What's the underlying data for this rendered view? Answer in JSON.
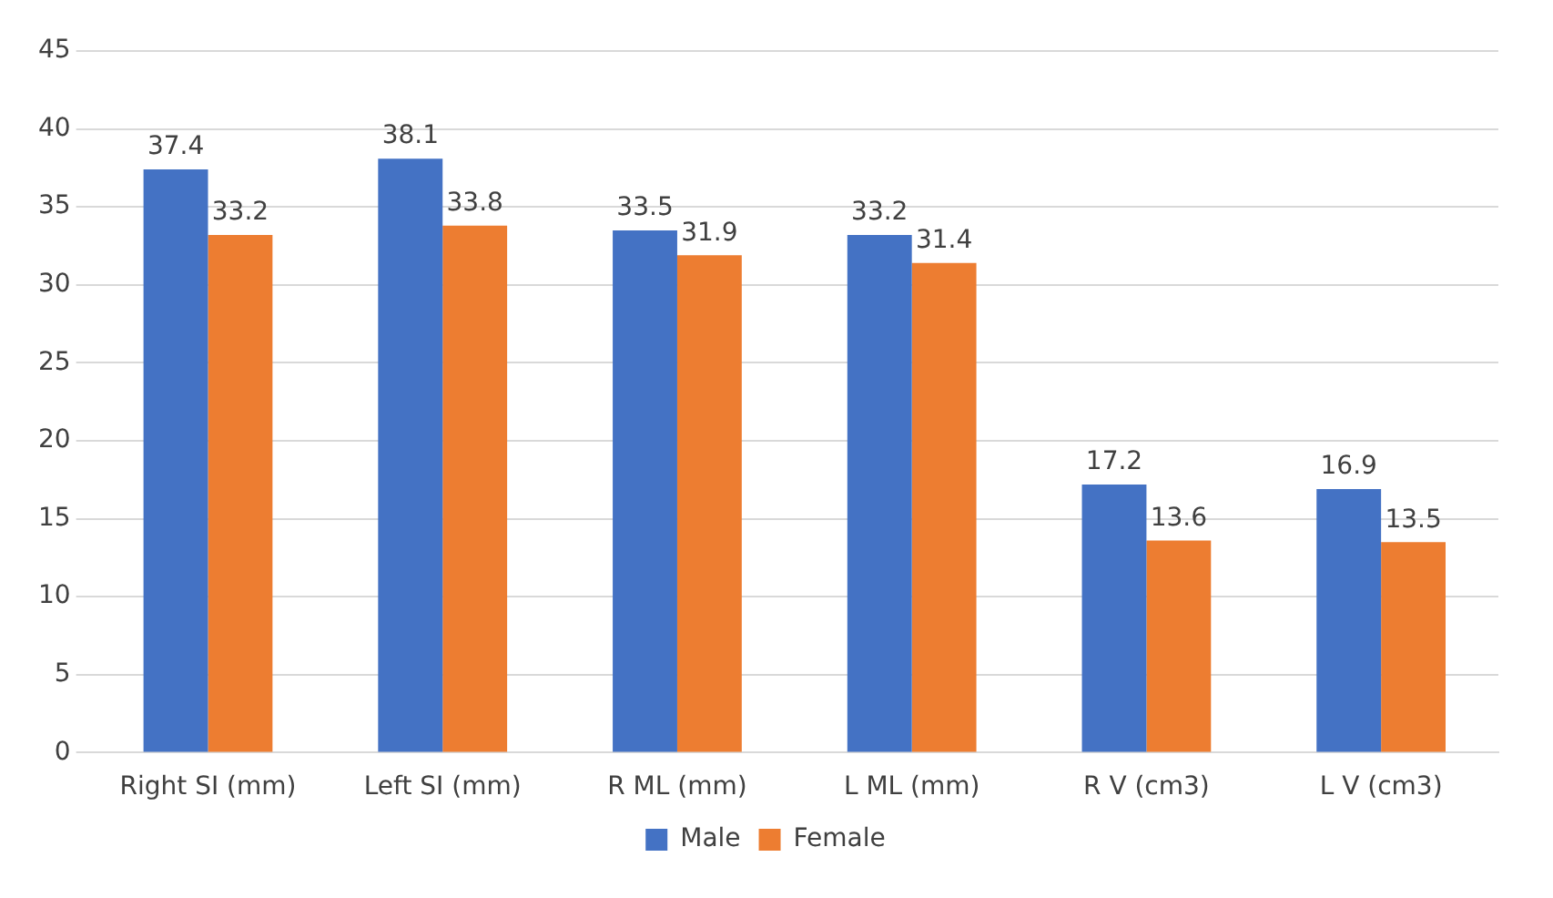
{
  "chart_data": {
    "type": "bar",
    "categories": [
      "Right SI (mm)",
      "Left SI (mm)",
      "R ML (mm)",
      "L ML (mm)",
      "R V (cm3)",
      "L V (cm3)"
    ],
    "series": [
      {
        "name": "Male",
        "color": "#4472c4",
        "values": [
          37.4,
          38.1,
          33.5,
          33.2,
          17.2,
          16.9
        ]
      },
      {
        "name": "Female",
        "color": "#ed7d31",
        "values": [
          33.2,
          33.8,
          31.9,
          31.4,
          13.6,
          13.5
        ]
      }
    ],
    "ylim": [
      0,
      45
    ],
    "yticks": [
      0,
      5,
      10,
      15,
      20,
      25,
      30,
      35,
      40,
      45
    ],
    "grid": "y",
    "legend": "bottom",
    "data_labels": true
  }
}
